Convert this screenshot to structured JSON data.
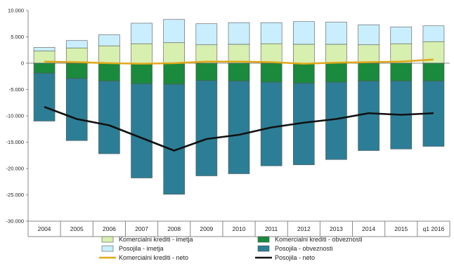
{
  "chart_data": {
    "type": "bar",
    "title": "",
    "xlabel": "",
    "ylabel": "",
    "ylim": [
      -30000,
      10000
    ],
    "yticks": [
      10000,
      5000,
      0,
      -5000,
      -10000,
      -15000,
      -20000,
      -25000,
      -30000
    ],
    "ytick_labels": [
      "10.000",
      "5.000",
      "0",
      "-5.000",
      "-10.000",
      "-15.000",
      "-20.000",
      "-25.000",
      "-30.000"
    ],
    "categories": [
      "2004",
      "2005",
      "2006",
      "2007",
      "2008",
      "2009",
      "2010",
      "2011",
      "2012",
      "2013",
      "2014",
      "2015",
      "q1 2016"
    ],
    "stacking": "diverging",
    "grid": false,
    "legend_position": "bottom",
    "series": [
      {
        "name": "Komercialni krediti - imetja",
        "kind": "bar",
        "color": "#d7f0b0",
        "values": [
          2300,
          2900,
          3300,
          3700,
          3900,
          3500,
          3600,
          3700,
          3600,
          3600,
          3500,
          3700,
          4100
        ]
      },
      {
        "name": "Posojila - imetja",
        "kind": "bar",
        "color": "#c9efff",
        "values": [
          700,
          1400,
          2100,
          3900,
          4400,
          4000,
          4100,
          4000,
          4300,
          4200,
          3800,
          3200,
          3000
        ]
      },
      {
        "name": "Komercialni krediti - obveznosti",
        "kind": "bar",
        "color": "#1a8a3c",
        "values": [
          -1900,
          -2900,
          -3400,
          -3900,
          -4000,
          -3300,
          -3400,
          -3600,
          -3800,
          -3600,
          -3400,
          -3400,
          -3400
        ]
      },
      {
        "name": "Posojila - obveznosti",
        "kind": "bar",
        "color": "#2c7e96",
        "values": [
          -9100,
          -11800,
          -13800,
          -17900,
          -20900,
          -18100,
          -17600,
          -15900,
          -15500,
          -14700,
          -13200,
          -12900,
          -12400
        ]
      },
      {
        "name": "Komercialni krediti - neto",
        "kind": "line",
        "color": "#e0a81a",
        "values": [
          300,
          200,
          0,
          -100,
          0,
          300,
          300,
          200,
          -100,
          100,
          200,
          300,
          700
        ]
      },
      {
        "name": "Posojila - neto",
        "kind": "line",
        "color": "#111111",
        "values": [
          -8300,
          -10600,
          -11800,
          -14200,
          -16600,
          -14400,
          -13600,
          -12200,
          -11300,
          -10600,
          -9500,
          -9800,
          -9500
        ]
      }
    ]
  }
}
